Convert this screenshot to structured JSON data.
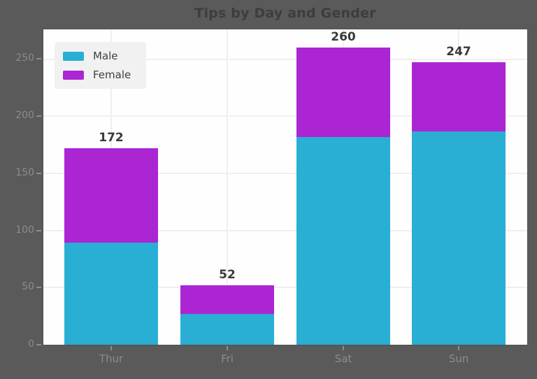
{
  "title": "Tips by Day and Gender",
  "colors": {
    "background": "#5a5a5a",
    "plot_background": "#fefefe",
    "male": "#29afd4",
    "female": "#ac25d3",
    "grid": "#f3edf3",
    "title_text": "#3d3d3d",
    "tick_text": "#8c8c8c",
    "bar_label_text": "#3a3a3a",
    "legend_background": "#f1f1f1",
    "legend_text": "#3f3f3f"
  },
  "legend": {
    "items": [
      {
        "label": "Male",
        "color": "#29afd4"
      },
      {
        "label": "Female",
        "color": "#ac25d3"
      }
    ]
  },
  "chart_data": {
    "type": "bar",
    "stacked": true,
    "title": "Tips by Day and Gender",
    "categories": [
      "Thur",
      "Fri",
      "Sat",
      "Sun"
    ],
    "series": [
      {
        "name": "Male",
        "color": "#29afd4",
        "values": [
          89.4,
          26.9,
          182.0,
          186.8
        ]
      },
      {
        "name": "Female",
        "color": "#ac25d3",
        "values": [
          82.4,
          25.1,
          78.4,
          60.6
        ]
      }
    ],
    "totals_labels": [
      "172",
      "52",
      "260",
      "247"
    ],
    "xlabel": "",
    "ylabel": "",
    "ylim": [
      0,
      276
    ],
    "yticks": [
      0,
      50,
      100,
      150,
      200,
      250
    ],
    "grid": true,
    "legend_position": "upper left"
  }
}
